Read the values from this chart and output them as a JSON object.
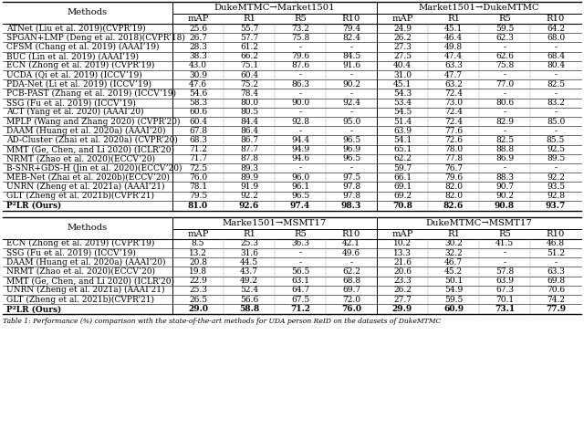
{
  "section1_col_groups": [
    {
      "label": "DukeMTMC→Market1501",
      "cols": [
        "mAP",
        "R1",
        "R5",
        "R10"
      ]
    },
    {
      "label": "Market1501→DukeMTMC",
      "cols": [
        "mAP",
        "R1",
        "R5",
        "R10"
      ]
    }
  ],
  "section1_rows": [
    {
      "method": "ATNet (Liu et al. 2019)(CVPR’19)",
      "d2m": [
        "25.6",
        "55.7",
        "73.2",
        "79.4"
      ],
      "m2d": [
        "24.9",
        "45.1",
        "59.5",
        "64.2"
      ]
    },
    {
      "method": "SPGAN+LMP (Deng et al. 2018)(CVPR’18)",
      "d2m": [
        "26.7",
        "57.7",
        "75.8",
        "82.4"
      ],
      "m2d": [
        "26.2",
        "46.4",
        "62.3",
        "68.0"
      ]
    },
    {
      "method": "CFSM (Chang et al. 2019) (AAAI’19)",
      "d2m": [
        "28.3",
        "61.2",
        "-",
        "-"
      ],
      "m2d": [
        "27.3",
        "49.8",
        "-",
        "-"
      ]
    },
    {
      "method": "BUC (Lin et al. 2019) (AAAI’19)",
      "d2m": [
        "38.3",
        "66.2",
        "79.6",
        "84.5"
      ],
      "m2d": [
        "27.5",
        "47.4",
        "62.6",
        "68.4"
      ]
    },
    {
      "method": "ECN (Zhong et al. 2019) (CVPR’19)",
      "d2m": [
        "43.0",
        "75.1",
        "87.6",
        "91.6"
      ],
      "m2d": [
        "40.4",
        "63.3",
        "75.8",
        "80.4"
      ]
    },
    {
      "method": "UCDA (Qi et al. 2019) (ICCV’19)",
      "d2m": [
        "30.9",
        "60.4",
        "-",
        "-"
      ],
      "m2d": [
        "31.0",
        "47.7",
        "-",
        "-"
      ]
    },
    {
      "method": "PDA-Net (Li et al. 2019) (ICCV’19)",
      "d2m": [
        "47.6",
        "75.2",
        "86.3",
        "90.2"
      ],
      "m2d": [
        "45.1",
        "63.2",
        "77.0",
        "82.5"
      ]
    },
    {
      "method": "PCB-PAST (Zhang et al. 2019) (ICCV’19)",
      "d2m": [
        "54.6",
        "78.4",
        "-",
        "-"
      ],
      "m2d": [
        "54.3",
        "72.4",
        "-",
        "-"
      ]
    },
    {
      "method": "SSG (Fu et al. 2019) (ICCV’19)",
      "d2m": [
        "58.3",
        "80.0",
        "90.0",
        "92.4"
      ],
      "m2d": [
        "53.4",
        "73.0",
        "80.6",
        "83.2"
      ]
    },
    {
      "method": "ACT (Yang et al. 2020) (AAAI’20)",
      "d2m": [
        "60.6",
        "80.5",
        "-",
        "-"
      ],
      "m2d": [
        "54.5",
        "72.4",
        "-",
        "-"
      ]
    },
    {
      "method": "MPLP (Wang and Zhang 2020) (CVPR’20)",
      "d2m": [
        "60.4",
        "84.4",
        "92.8",
        "95.0"
      ],
      "m2d": [
        "51.4",
        "72.4",
        "82.9",
        "85.0"
      ]
    },
    {
      "method": "DAAM (Huang et al. 2020a) (AAAI’20)",
      "d2m": [
        "67.8",
        "86.4",
        "-",
        "-"
      ],
      "m2d": [
        "63.9",
        "77.6",
        "-",
        "-"
      ]
    },
    {
      "method": "AD-Cluster (Zhai et al. 2020a) (CVPR’20)",
      "d2m": [
        "68.3",
        "86.7",
        "94.4",
        "96.5"
      ],
      "m2d": [
        "54.1",
        "72.6",
        "82.5",
        "85.5"
      ]
    },
    {
      "method": "MMT (Ge, Chen, and Li 2020) (ICLR’20)",
      "d2m": [
        "71.2",
        "87.7",
        "94.9",
        "96.9"
      ],
      "m2d": [
        "65.1",
        "78.0",
        "88.8",
        "92.5"
      ]
    },
    {
      "method": "NRMT (Zhao et al. 2020)(ECCV’20)",
      "d2m": [
        "71.7",
        "87.8",
        "94.6",
        "96.5"
      ],
      "m2d": [
        "62.2",
        "77.8",
        "86.9",
        "89.5"
      ]
    },
    {
      "method": "B-SNR+GDS-H (Jin et al. 2020)(ECCV’20)",
      "d2m": [
        "72.5",
        "89.3",
        "-",
        "-"
      ],
      "m2d": [
        "59.7",
        "76.7",
        "-",
        "-"
      ]
    },
    {
      "method": "MEB-Net (Zhai et al. 2020b)(ECCV’20)",
      "d2m": [
        "76.0",
        "89.9",
        "96.0",
        "97.5"
      ],
      "m2d": [
        "66.1",
        "79.6",
        "88.3",
        "92.2"
      ]
    },
    {
      "method": "UNRN (Zheng et al. 2021a) (AAAI’21)",
      "d2m": [
        "78.1",
        "91.9",
        "96.1",
        "97.8"
      ],
      "m2d": [
        "69.1",
        "82.0",
        "90.7",
        "93.5"
      ]
    },
    {
      "method": "GLT (Zheng et al. 2021b)(CVPR’21)",
      "d2m": [
        "79.5",
        "92.2",
        "96.5",
        "97.8"
      ],
      "m2d": [
        "69.2",
        "82.0",
        "90.2",
        "92.8"
      ]
    },
    {
      "method": "P²LR (Ours)",
      "d2m": [
        "81.0",
        "92.6",
        "97.4",
        "98.3"
      ],
      "m2d": [
        "70.8",
        "82.6",
        "90.8",
        "93.7"
      ],
      "bold": true
    }
  ],
  "section2_col_groups": [
    {
      "label": "Marke1501→MSMT17",
      "cols": [
        "mAP",
        "R1",
        "R5",
        "R10"
      ]
    },
    {
      "label": "DukeMTMC→MSMT17",
      "cols": [
        "mAP",
        "R1",
        "R5",
        "R10"
      ]
    }
  ],
  "section2_rows": [
    {
      "method": "ECN (Zhong et al. 2019) (CVPR’19)",
      "m2ms": [
        "8.5",
        "25.3",
        "36.3",
        "42.1"
      ],
      "d2ms": [
        "10.2",
        "30.2",
        "41.5",
        "46.8"
      ]
    },
    {
      "method": "SSG (Fu et al. 2019) (ICCV’19)",
      "m2ms": [
        "13.2",
        "31.6",
        "-",
        "49.6"
      ],
      "d2ms": [
        "13.3",
        "32.2",
        "-",
        "51.2"
      ]
    },
    {
      "method": "DAAM (Huang et al. 2020a) (AAAI’20)",
      "m2ms": [
        "20.8",
        "44.5",
        "-",
        "-"
      ],
      "d2ms": [
        "21.6",
        "46.7",
        "-",
        "-"
      ]
    },
    {
      "method": "NRMT (Zhao et al. 2020)(ECCV’20)",
      "m2ms": [
        "19.8",
        "43.7",
        "56.5",
        "62.2"
      ],
      "d2ms": [
        "20.6",
        "45.2",
        "57.8",
        "63.3"
      ]
    },
    {
      "method": "MMT (Ge, Chen, and Li 2020) (ICLR’20)",
      "m2ms": [
        "22.9",
        "49.2",
        "63.1",
        "68.8"
      ],
      "d2ms": [
        "23.3",
        "50.1",
        "63.9",
        "69.8"
      ]
    },
    {
      "method": "UNRN (Zheng et al. 2021a) (AAAI’21)",
      "m2ms": [
        "25.3",
        "52.4",
        "64.7",
        "69.7"
      ],
      "d2ms": [
        "26.2",
        "54.9",
        "67.3",
        "70.6"
      ]
    },
    {
      "method": "GLT (Zheng et al. 2021b)(CVPR’21)",
      "m2ms": [
        "26.5",
        "56.6",
        "67.5",
        "72.0"
      ],
      "d2ms": [
        "27.7",
        "59.5",
        "70.1",
        "74.2"
      ]
    },
    {
      "method": "P²LR (Ours)",
      "m2ms": [
        "29.0",
        "58.8",
        "71.2",
        "76.0"
      ],
      "d2ms": [
        "29.9",
        "60.9",
        "73.1",
        "77.9"
      ],
      "bold": true
    }
  ],
  "caption": "Table 1: Performance (%) comparison with the state-of-the-art methods for UDA person ReID on the datasets of DukeMTMC"
}
